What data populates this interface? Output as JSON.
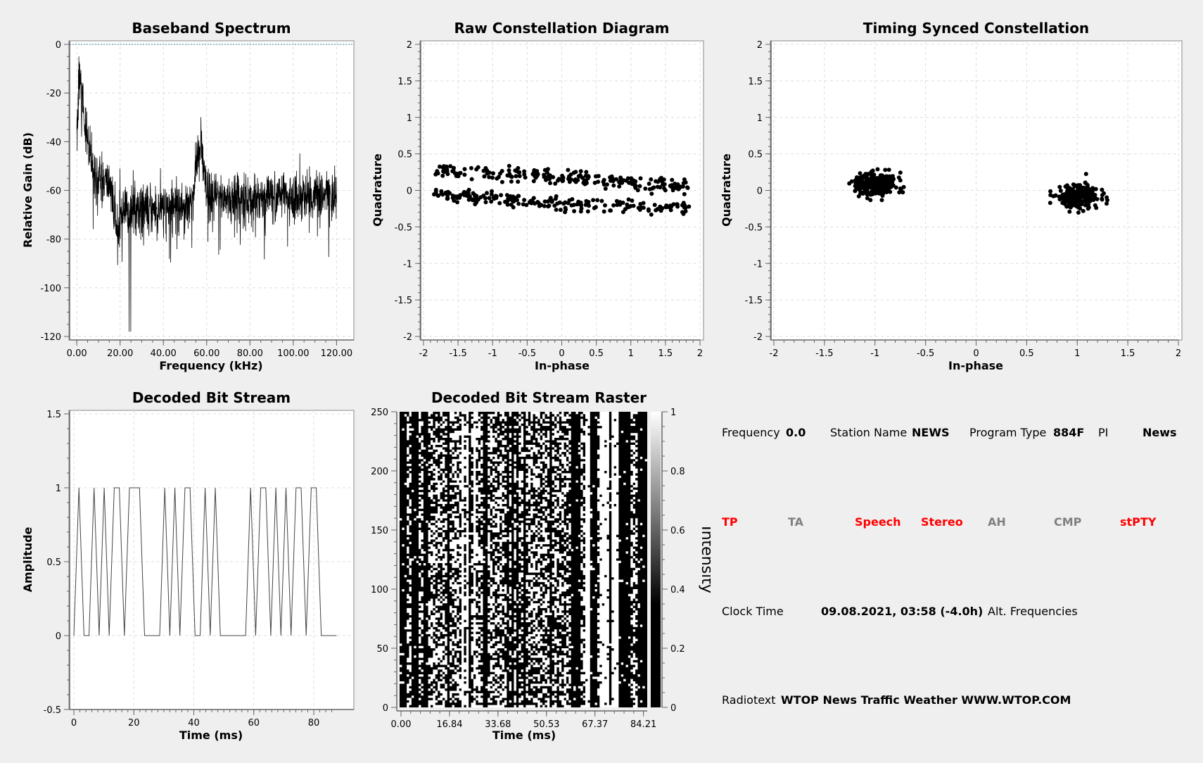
{
  "charts": {
    "spectrum": {
      "title": "Baseband Spectrum",
      "xlabel": "Frequency (kHz)",
      "ylabel": "Relative Gain (dB)",
      "xticks": [
        "0.00",
        "20.00",
        "40.00",
        "60.00",
        "80.00",
        "100.00",
        "120.00"
      ],
      "yticks": [
        "0",
        "-20",
        "-40",
        "-60",
        "-80",
        "-100",
        "-120"
      ]
    },
    "raw_constellation": {
      "title": "Raw Constellation Diagram",
      "xlabel": "In-phase",
      "ylabel": "Quadrature",
      "xticks": [
        "-2",
        "-1.5",
        "-1",
        "-0.5",
        "0",
        "0.5",
        "1",
        "1.5",
        "2"
      ],
      "yticks": [
        "2",
        "1.5",
        "1",
        "0.5",
        "0",
        "-0.5",
        "-1",
        "-1.5",
        "-2"
      ]
    },
    "synced_constellation": {
      "title": "Timing Synced Constellation",
      "xlabel": "In-phase",
      "ylabel": "Quadrature",
      "xticks": [
        "-2",
        "-1.5",
        "-1",
        "-0.5",
        "0",
        "0.5",
        "1",
        "1.5",
        "2"
      ],
      "yticks": [
        "2",
        "1.5",
        "1",
        "0.5",
        "0",
        "-0.5",
        "-1",
        "-1.5",
        "-2"
      ]
    },
    "bitstream": {
      "title": "Decoded Bit Stream",
      "xlabel": "Time (ms)",
      "ylabel": "Amplitude",
      "xticks": [
        "0",
        "20",
        "40",
        "60",
        "80"
      ],
      "yticks": [
        "1.5",
        "1",
        "0.5",
        "0",
        "-0.5"
      ]
    },
    "raster": {
      "title": "Decoded Bit Stream Raster",
      "xlabel": "Time (ms)",
      "colorbar_label": "Intensity",
      "xticks": [
        "0.00",
        "16.84",
        "33.68",
        "50.53",
        "67.37",
        "84.21"
      ],
      "yticks": [
        "250",
        "200",
        "150",
        "100",
        "50",
        "0"
      ],
      "cticks": [
        "1",
        "0.8",
        "0.6",
        "0.4",
        "0.2",
        "0"
      ]
    }
  },
  "chart_data": [
    {
      "type": "line",
      "title": "Baseband Spectrum",
      "xlabel": "Frequency (kHz)",
      "ylabel": "Relative Gain (dB)",
      "xlim": [
        -2,
        128
      ],
      "ylim": [
        -122,
        0
      ],
      "grid": true,
      "series": [
        {
          "x": [
            0,
            1,
            2,
            3,
            4,
            5,
            6,
            7,
            8,
            9,
            10,
            12,
            14,
            16,
            17,
            18,
            20,
            25,
            30,
            35,
            40,
            45,
            50,
            54,
            55,
            56,
            57,
            58,
            59,
            60,
            62,
            65,
            70,
            75,
            80,
            85,
            90,
            95,
            100,
            105,
            110,
            115,
            120
          ],
          "y": [
            -35,
            -12,
            -22,
            -28,
            -32,
            -40,
            -45,
            -50,
            -52,
            -54,
            -55,
            -56,
            -57,
            -58,
            -70,
            -72,
            -70,
            -68,
            -67,
            -68,
            -67,
            -66,
            -66,
            -62,
            -52,
            -44,
            -42,
            -46,
            -55,
            -62,
            -64,
            -62,
            -63,
            -63,
            -64,
            -62,
            -63,
            -62,
            -63,
            -62,
            -63,
            -62,
            -63
          ]
        }
      ]
    },
    {
      "type": "scatter",
      "title": "Raw Constellation Diagram",
      "xlabel": "In-phase",
      "ylabel": "Quadrature",
      "xlim": [
        -2,
        2
      ],
      "ylim": [
        -2,
        2
      ],
      "grid": true,
      "series": [
        {
          "x_range": [
            -1.9,
            1.9
          ],
          "y_range": [
            -0.35,
            0.35
          ],
          "note_points": 420
        }
      ]
    },
    {
      "type": "scatter",
      "title": "Timing Synced Constellation",
      "xlabel": "In-phase",
      "ylabel": "Quadrature",
      "xlim": [
        -2,
        2
      ],
      "ylim": [
        -2,
        2
      ],
      "grid": true,
      "series": [
        {
          "center": [
            -1,
            0.08
          ],
          "spread": [
            0.3,
            0.25
          ]
        },
        {
          "center": [
            1,
            -0.08
          ],
          "spread": [
            0.3,
            0.25
          ]
        }
      ]
    },
    {
      "type": "line",
      "title": "Decoded Bit Stream",
      "xlabel": "Time (ms)",
      "ylabel": "Amplitude",
      "xlim": [
        -1,
        87
      ],
      "ylim": [
        -0.5,
        1.5
      ],
      "grid": true,
      "series": [
        {
          "bits": [
            0,
            1,
            0,
            0,
            1,
            0,
            1,
            0,
            1,
            1,
            0,
            1,
            1,
            1,
            0,
            0,
            0,
            0,
            1,
            0,
            1,
            0,
            1,
            1,
            0,
            0,
            1,
            0,
            1,
            0,
            0,
            0,
            0,
            0,
            0,
            1,
            0,
            1,
            1,
            0,
            1,
            0,
            1,
            0,
            1,
            1,
            0,
            1,
            1,
            0,
            0,
            0,
            0
          ],
          "bit_period_ms": 1.684
        }
      ]
    },
    {
      "type": "heatmap",
      "title": "Decoded Bit Stream Raster",
      "xlabel": "Time (ms)",
      "colorbar_label": "Intensity",
      "xlim": [
        0,
        86
      ],
      "ylim": [
        0,
        250
      ],
      "clim": [
        0,
        1
      ]
    }
  ],
  "rds": {
    "frequency_label": "Frequency",
    "frequency_value": "0.0",
    "station_name_label": "Station Name",
    "station_name_value": "NEWS",
    "program_type_label": "Program Type",
    "program_type_value": "884F",
    "pi_label": "PI",
    "pi_value": "News",
    "flags": [
      {
        "label": "TP",
        "color": "#ff0000"
      },
      {
        "label": "TA",
        "color": "#808080"
      },
      {
        "label": "Speech",
        "color": "#ff0000"
      },
      {
        "label": "Stereo",
        "color": "#ff0000"
      },
      {
        "label": "AH",
        "color": "#808080"
      },
      {
        "label": "CMP",
        "color": "#808080"
      },
      {
        "label": "stPTY",
        "color": "#ff0000"
      }
    ],
    "clock_time_label": "Clock Time",
    "clock_time_value": "09.08.2021, 03:58 (-4.0h)",
    "alt_freq_label": "Alt. Frequencies",
    "radiotext_label": "Radiotext",
    "radiotext_value": "WTOP News Traffic Weather WWW.WTOP.COM"
  }
}
